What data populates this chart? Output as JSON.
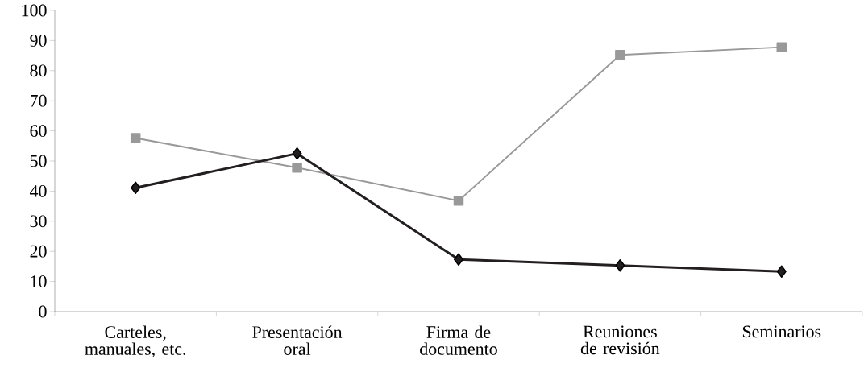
{
  "chart_data": {
    "type": "line",
    "categories": [
      "Carteles, manuales, etc.",
      "Presentación oral",
      "Firma de documento",
      "Reuniones de revisión",
      "Seminarios"
    ],
    "series": [
      {
        "color": "#999999",
        "marker": "square",
        "values": [
          57.6,
          47.8,
          36.8,
          85.2,
          87.8
        ]
      },
      {
        "color": "#231f20",
        "marker": "diamond",
        "values": [
          41.1,
          52.5,
          17.3,
          15.3,
          13.3
        ]
      }
    ],
    "ylim": [
      0,
      100
    ],
    "yticks": [
      0,
      10,
      20,
      30,
      40,
      50,
      60,
      70,
      80,
      90,
      100
    ]
  }
}
